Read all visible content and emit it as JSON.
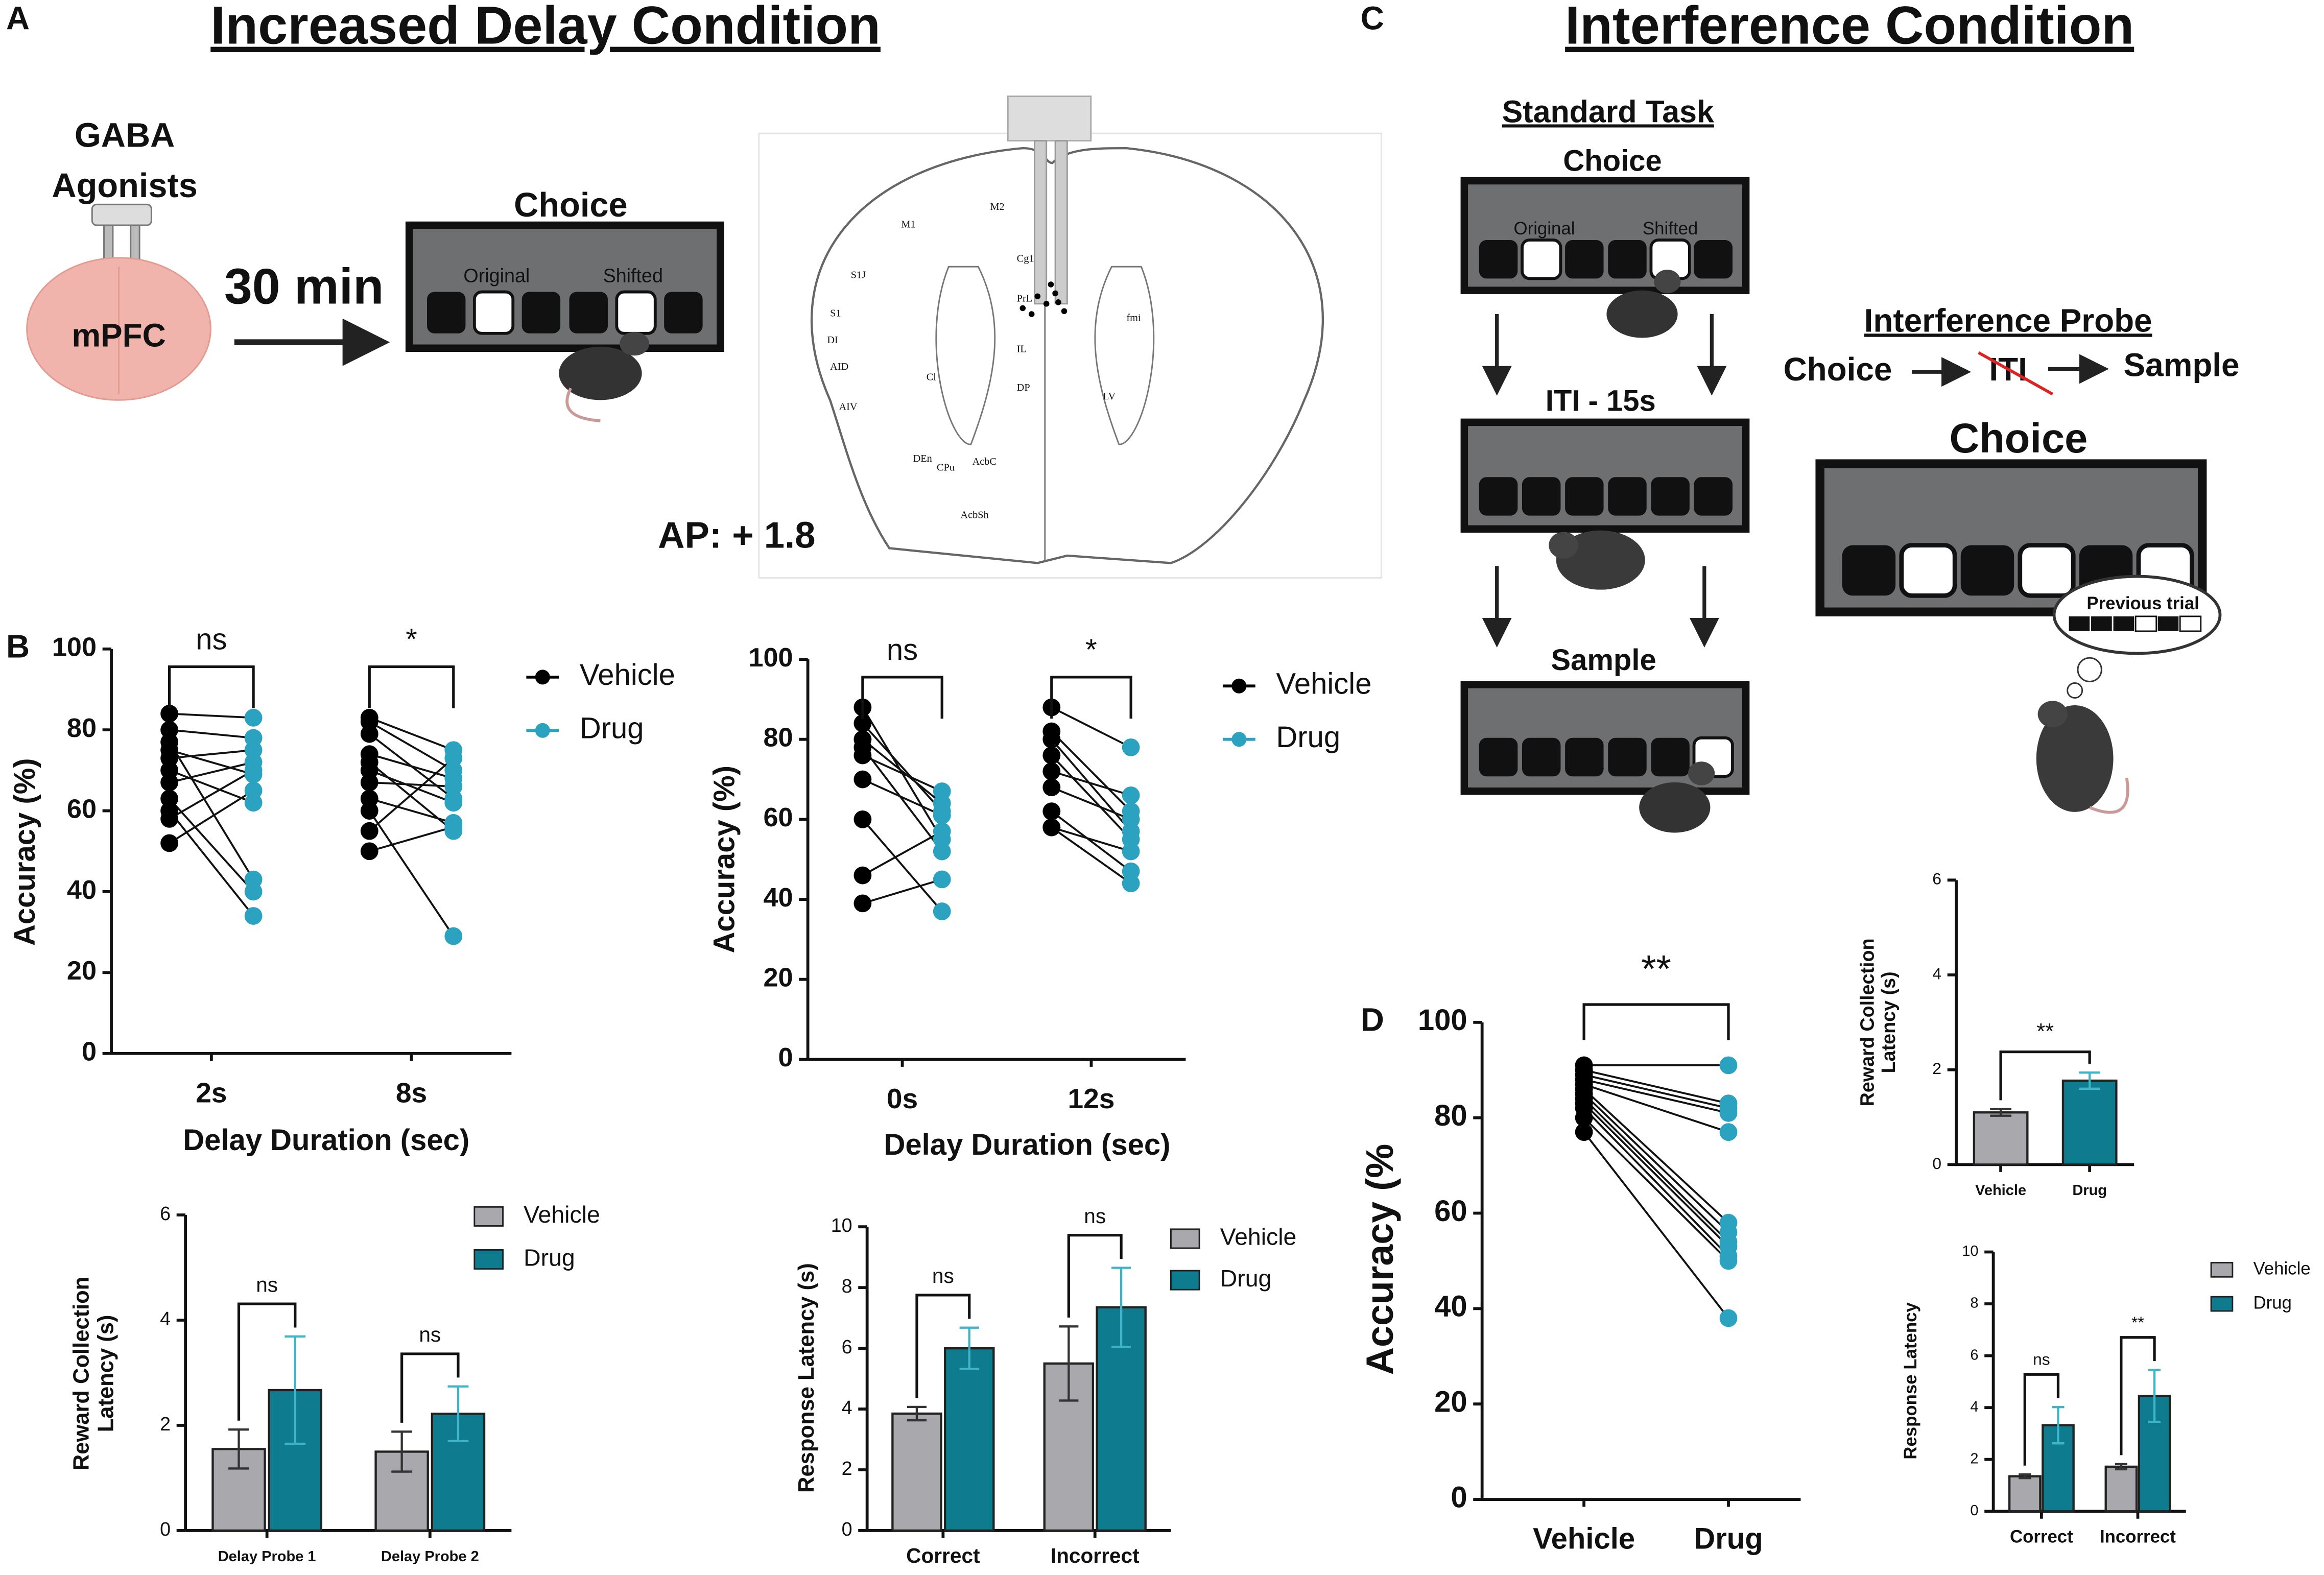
{
  "panel_labels": [
    "A",
    "B",
    "C",
    "D"
  ],
  "panel_a": {
    "title": "Increased Delay Condition",
    "drug": [
      "GABA",
      "Agonists"
    ],
    "region": "mPFC",
    "wait": "30 min",
    "box_title": "Choice",
    "original": "Original",
    "shifted": "Shifted",
    "coordinate": "AP: + 1.8",
    "atlas_labels": [
      "M2",
      "M1",
      "S1J",
      "S1",
      "DI",
      "AID",
      "AIV",
      "Cg1",
      "PrL",
      "IL",
      "DP",
      "fmi",
      "LV",
      "Cl",
      "CPu",
      "DEn",
      "AcbC",
      "AcbSh"
    ]
  },
  "panel_c": {
    "title": "Interference Condition",
    "standard_task": "Standard Task",
    "choice": "Choice",
    "original": "Original",
    "shifted": "Shifted",
    "iti": "ITI - 15s",
    "sample": "Sample",
    "probe_title": "Interference Probe",
    "probe_sequence": [
      "Choice",
      "ITI",
      "Sample"
    ],
    "probe_box_title": "Choice",
    "thought": "Previous trial"
  },
  "chart_data": [
    {
      "type": "paired-dot-grouped",
      "categories": [
        "2s",
        "8s"
      ],
      "xlabel": "Delay Duration (sec)",
      "ylabel": [
        "Accuracy (%)"
      ],
      "ylim": [
        0,
        100
      ],
      "yticks": [
        0,
        20,
        40,
        60,
        80,
        100
      ],
      "significance": [
        "ns",
        "*"
      ],
      "series": [
        {
          "name": "Vehicle",
          "color": "#000000",
          "values": [
            [
              84,
              80,
              77,
              75,
              73,
              70,
              67,
              63,
              60,
              58,
              52
            ],
            [
              83,
              82,
              79,
              74,
              72,
              70,
              67,
              63,
              60,
              55,
              50
            ]
          ]
        },
        {
          "name": "Drug",
          "color": "#2ba3c0",
          "values": [
            [
              83,
              78,
              43,
              69,
              75,
              62,
              72,
              40,
              34,
              70,
              65
            ],
            [
              75,
              70,
              63,
              68,
              55,
              62,
              66,
              57,
              29,
              73,
              56
            ]
          ]
        }
      ]
    },
    {
      "type": "paired-dot-grouped",
      "categories": [
        "0s",
        "12s"
      ],
      "xlabel": "Delay Duration (sec)",
      "ylabel": [
        "Accuracy (%)"
      ],
      "ylim": [
        0,
        100
      ],
      "yticks": [
        0,
        20,
        40,
        60,
        80,
        100
      ],
      "significance": [
        "ns",
        "*"
      ],
      "series": [
        {
          "name": "Vehicle",
          "color": "#000000",
          "values": [
            [
              88,
              84,
              80,
              78,
              76,
              70,
              60,
              46,
              39
            ],
            [
              88,
              82,
              80,
              76,
              72,
              68,
              62,
              58,
              58
            ]
          ]
        },
        {
          "name": "Drug",
          "color": "#2ba3c0",
          "values": [
            [
              55,
              62,
              64,
              52,
              67,
              61,
              37,
              57,
              45
            ],
            [
              78,
              62,
              57,
              55,
              66,
              60,
              47,
              44,
              52
            ]
          ]
        }
      ]
    },
    {
      "type": "bar",
      "categories": [
        "Delay Probe 1",
        "Delay Probe 2"
      ],
      "ylabel": [
        "Reward Collection",
        "Latency (s)"
      ],
      "ylim": [
        0,
        6
      ],
      "yticks": [
        0,
        2,
        4,
        6
      ],
      "significance": [
        "ns",
        "ns"
      ],
      "series": [
        {
          "name": "Vehicle",
          "color": "#a9a8ad",
          "values": [
            1.55,
            1.5
          ],
          "errors": [
            0.37,
            0.38
          ]
        },
        {
          "name": "Drug",
          "color": "#0f7b8e",
          "values": [
            2.67,
            2.22
          ],
          "errors": [
            1.02,
            0.52
          ]
        }
      ]
    },
    {
      "type": "bar",
      "categories": [
        "Correct",
        "Incorrect"
      ],
      "ylabel": [
        "Response Latency (s)"
      ],
      "ylim": [
        0,
        10
      ],
      "yticks": [
        0,
        2,
        4,
        6,
        8,
        10
      ],
      "significance": [
        "ns",
        "ns"
      ],
      "series": [
        {
          "name": "Vehicle",
          "color": "#a9a8ad",
          "values": [
            3.85,
            5.5
          ],
          "errors": [
            0.22,
            1.22
          ]
        },
        {
          "name": "Drug",
          "color": "#0f7b8e",
          "values": [
            6.0,
            7.35
          ],
          "errors": [
            0.68,
            1.3
          ]
        }
      ]
    },
    {
      "type": "paired-dot",
      "categories": [
        "Vehicle",
        "Drug"
      ],
      "ylabel": [
        "Accuracy (%"
      ],
      "ylim": [
        0,
        100
      ],
      "yticks": [
        0,
        20,
        40,
        60,
        80,
        100
      ],
      "significance": "**",
      "colors": [
        "#000000",
        "#2ba3c0"
      ],
      "values": [
        [
          91,
          90,
          89,
          88,
          87,
          86,
          85,
          84,
          83,
          82,
          80,
          77
        ],
        [
          91,
          83,
          82,
          81,
          77,
          58,
          56,
          54,
          53,
          51,
          50,
          38
        ]
      ]
    },
    {
      "type": "bar",
      "categories": [
        "Vehicle",
        "Drug"
      ],
      "ylabel": [
        "Reward Collection",
        "Latency (s)"
      ],
      "ylim": [
        0,
        6
      ],
      "yticks": [
        0,
        2,
        4,
        6
      ],
      "significance": "**",
      "values": [
        1.1,
        1.77
      ],
      "errors": [
        0.07,
        0.17
      ],
      "colors": [
        "#a9a8ad",
        "#0f7b8e"
      ]
    },
    {
      "type": "bar",
      "categories": [
        "Correct",
        "Incorrect"
      ],
      "ylabel": [
        "Response Latency"
      ],
      "ylim": [
        0,
        10
      ],
      "yticks": [
        0,
        2,
        4,
        6,
        8,
        10
      ],
      "significance": [
        "ns",
        "**"
      ],
      "series": [
        {
          "name": "Vehicle",
          "color": "#a9a8ad",
          "values": [
            1.35,
            1.72
          ],
          "errors": [
            0.07,
            0.1
          ]
        },
        {
          "name": "Drug",
          "color": "#0f7b8e",
          "values": [
            3.32,
            4.45
          ],
          "errors": [
            0.7,
            1.0
          ]
        }
      ]
    }
  ]
}
